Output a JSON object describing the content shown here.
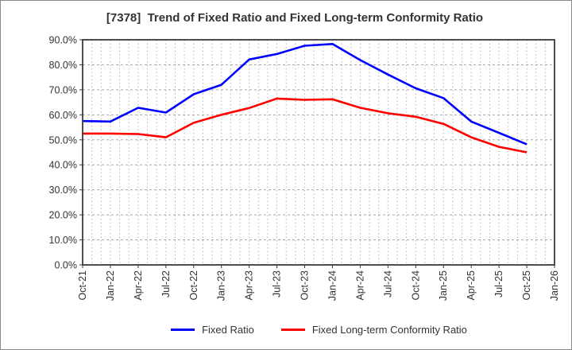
{
  "title": "[7378]  Trend of Fixed Ratio and Fixed Long-term Conformity Ratio",
  "colors": {
    "fixed_ratio_line": "#0000ff",
    "fixed_lt_line": "#ff0000",
    "grid_horizontal": "#a8a8a8",
    "grid_vertical": "#b6b6b6",
    "axis_border": "#3a3a3a",
    "tick_text": "#333333",
    "title_text": "#333333",
    "background": "#ffffff"
  },
  "legend": [
    {
      "label": "Fixed Ratio",
      "color": "#0000ff"
    },
    {
      "label": "Fixed Long-term Conformity Ratio",
      "color": "#ff0000"
    }
  ],
  "chart_data": {
    "type": "line",
    "title": "[7378]  Trend of Fixed Ratio and Fixed Long-term Conformity Ratio",
    "categories": [
      "Oct-21",
      "Jan-22",
      "Apr-22",
      "Jul-22",
      "Oct-22",
      "Jan-23",
      "Apr-23",
      "Jul-23",
      "Oct-23",
      "Jan-24",
      "Apr-24",
      "Jul-24",
      "Oct-24",
      "Jan-25",
      "Apr-25",
      "Jul-25",
      "Oct-25",
      "Jan-26"
    ],
    "series": [
      {
        "name": "Fixed Ratio",
        "color": "#0000ff",
        "values": [
          57.5,
          57.3,
          62.8,
          60.9,
          68.2,
          72.0,
          82.1,
          84.3,
          87.6,
          88.3,
          81.9,
          76.1,
          70.6,
          66.7,
          57.3,
          52.8,
          48.2,
          null
        ]
      },
      {
        "name": "Fixed Long-term Conformity Ratio",
        "color": "#ff0000",
        "values": [
          52.5,
          52.5,
          52.3,
          51.0,
          56.8,
          60.0,
          62.7,
          66.5,
          66.0,
          66.2,
          62.8,
          60.6,
          59.2,
          56.4,
          51.0,
          47.2,
          45.0,
          null
        ]
      }
    ],
    "xlabel": "",
    "ylabel": "",
    "ylim": [
      0,
      90
    ],
    "ytick_step": 10,
    "yticklabels": [
      "0.0%",
      "10.0%",
      "20.0%",
      "30.0%",
      "40.0%",
      "50.0%",
      "60.0%",
      "70.0%",
      "80.0%",
      "90.0%"
    ],
    "grid": true,
    "minor_vertical_grid_per_interval": 3,
    "legend_position": "bottom"
  }
}
